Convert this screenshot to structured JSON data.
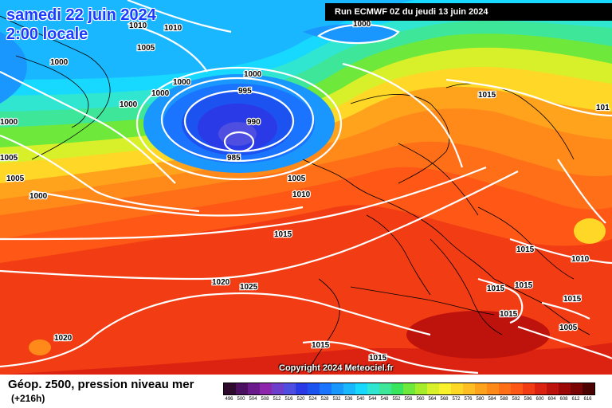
{
  "header": {
    "date": "samedi 22 juin 2024",
    "time": "2:00 locale",
    "run_info": "Run ECMWF 0Z du jeudi 13 juin 2024",
    "copyright": "Copyright 2024 Meteociel.fr"
  },
  "footer": {
    "product_title": "Géop. z500, pression niveau mer",
    "lead_time": "(+216h)"
  },
  "legend": {
    "labels": [
      "496",
      "500",
      "504",
      "508",
      "512",
      "516",
      "520",
      "524",
      "528",
      "532",
      "536",
      "540",
      "544",
      "548",
      "552",
      "556",
      "560",
      "564",
      "568",
      "572",
      "576",
      "580",
      "584",
      "588",
      "592",
      "596",
      "600",
      "604",
      "608",
      "612",
      "616"
    ],
    "colors": [
      "#2e0a2e",
      "#4b1060",
      "#6a1a8a",
      "#8e25ad",
      "#6d3dcc",
      "#4e4ee0",
      "#2a3ae6",
      "#1c52f0",
      "#1a74ff",
      "#1a96ff",
      "#19b7ff",
      "#17d8ff",
      "#30e6d0",
      "#3ee69a",
      "#39e55c",
      "#6ee83a",
      "#a6ec2a",
      "#d8f02a",
      "#f7f22c",
      "#ffd726",
      "#ffbe22",
      "#ffa31c",
      "#ff8a1a",
      "#ff6f18",
      "#ff5816",
      "#f23c14",
      "#dc2210",
      "#be120c",
      "#9c0808",
      "#7a0404",
      "#4a0202"
    ]
  },
  "isobars": [
    {
      "value": "1010"
    },
    {
      "value": "1010"
    },
    {
      "value": "1005"
    },
    {
      "value": "1000"
    },
    {
      "value": "1000"
    },
    {
      "value": "1000"
    },
    {
      "value": "1000"
    },
    {
      "value": "1000"
    },
    {
      "value": "995"
    },
    {
      "value": "990"
    },
    {
      "value": "985"
    },
    {
      "value": "1000"
    },
    {
      "value": "1005"
    },
    {
      "value": "1005"
    },
    {
      "value": "1000"
    },
    {
      "value": "1005"
    },
    {
      "value": "1010"
    },
    {
      "value": "1015"
    },
    {
      "value": "1015"
    },
    {
      "value": "1020"
    },
    {
      "value": "1025"
    },
    {
      "value": "1020"
    },
    {
      "value": "1015"
    },
    {
      "value": "1015"
    },
    {
      "value": "1015"
    },
    {
      "value": "1015"
    },
    {
      "value": "1015"
    },
    {
      "value": "1015"
    },
    {
      "value": "1010"
    },
    {
      "value": "1015"
    },
    {
      "value": "1005"
    },
    {
      "value": "101"
    },
    {
      "value": "1000"
    }
  ]
}
